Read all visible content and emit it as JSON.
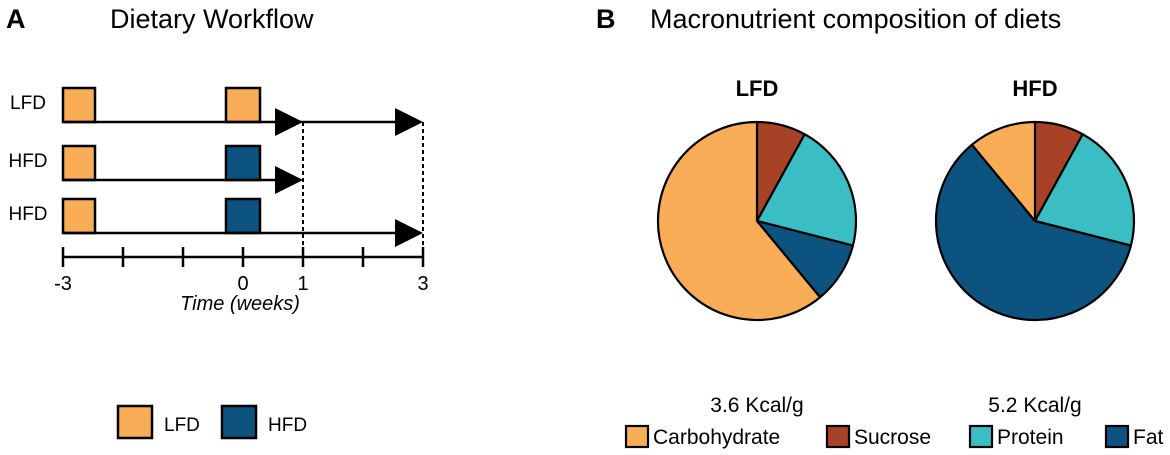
{
  "colors": {
    "lfd": "#F9AD57",
    "hfd": "#0D5380",
    "carbohydrate": "#F9AD57",
    "sucrose": "#A84226",
    "protein": "#3ABEC3",
    "fat": "#0D5380"
  },
  "panel_a": {
    "letter": "A",
    "title": "Dietary Workflow",
    "rows": [
      {
        "label": "LFD",
        "first_diet": "LFD",
        "second_diet": "LFD",
        "arrows_to_weeks": [
          1,
          3
        ]
      },
      {
        "label": "HFD",
        "first_diet": "LFD",
        "second_diet": "HFD",
        "arrows_to_weeks": [
          1
        ]
      },
      {
        "label": "HFD",
        "first_diet": "LFD",
        "second_diet": "HFD",
        "arrows_to_weeks": [
          3
        ]
      }
    ],
    "axis": {
      "title": "Time (weeks)",
      "tick_weeks": [
        -3,
        -2,
        -1,
        0,
        1,
        2,
        3
      ],
      "labeled_ticks": [
        {
          "week": -3,
          "label": "-3"
        },
        {
          "week": 0,
          "label": "0"
        },
        {
          "week": 1,
          "label": "1"
        },
        {
          "week": 3,
          "label": "3"
        }
      ],
      "dashed_lines_at_weeks": [
        1,
        3
      ]
    },
    "legend": [
      {
        "key": "lfd",
        "label": "LFD"
      },
      {
        "key": "hfd",
        "label": "HFD"
      }
    ]
  },
  "panel_b": {
    "letter": "B",
    "title": "Macronutrient composition of diets",
    "legend": [
      {
        "key": "carbohydrate",
        "label": "Carbohydrate"
      },
      {
        "key": "sucrose",
        "label": "Sucrose"
      },
      {
        "key": "protein",
        "label": "Protein"
      },
      {
        "key": "fat",
        "label": "Fat"
      }
    ]
  },
  "chart_data": [
    {
      "type": "pie",
      "title": "LFD",
      "caption": "3.6 Kcal/g",
      "categories": [
        "Sucrose",
        "Protein",
        "Fat",
        "Carbohydrate"
      ],
      "values": [
        8,
        21,
        10,
        61
      ],
      "colors": [
        "#A84226",
        "#3ABEC3",
        "#0D5380",
        "#F9AD57"
      ]
    },
    {
      "type": "pie",
      "title": "HFD",
      "caption": "5.2 Kcal/g",
      "categories": [
        "Sucrose",
        "Protein",
        "Fat",
        "Carbohydrate"
      ],
      "values": [
        8,
        21,
        60,
        11
      ],
      "colors": [
        "#A84226",
        "#3ABEC3",
        "#0D5380",
        "#F9AD57"
      ]
    }
  ]
}
